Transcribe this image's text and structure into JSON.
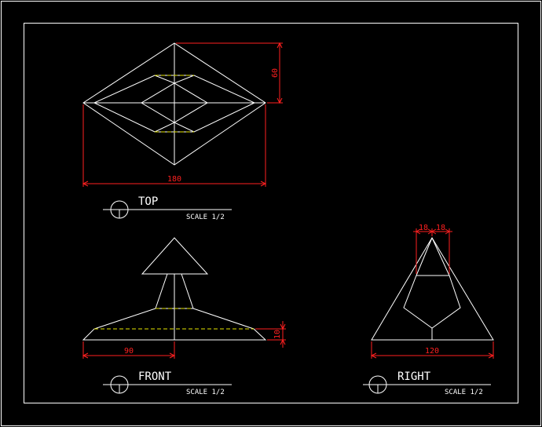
{
  "colors": {
    "background": "#000000",
    "outline": "#ffffff",
    "hidden_line": "#e6e600",
    "dimension": "#ff2020"
  },
  "views": {
    "top": {
      "label": "TOP",
      "scale": "SCALE 1/2"
    },
    "front": {
      "label": "FRONT",
      "scale": "SCALE 1/2"
    },
    "right": {
      "label": "RIGHT",
      "scale": "SCALE 1/2"
    }
  },
  "dimensions": {
    "top_width": "180",
    "top_height": "60",
    "front_half_width": "90",
    "front_base_height": "10",
    "right_width": "120",
    "right_tip_left": "18",
    "right_tip_right": "18"
  }
}
